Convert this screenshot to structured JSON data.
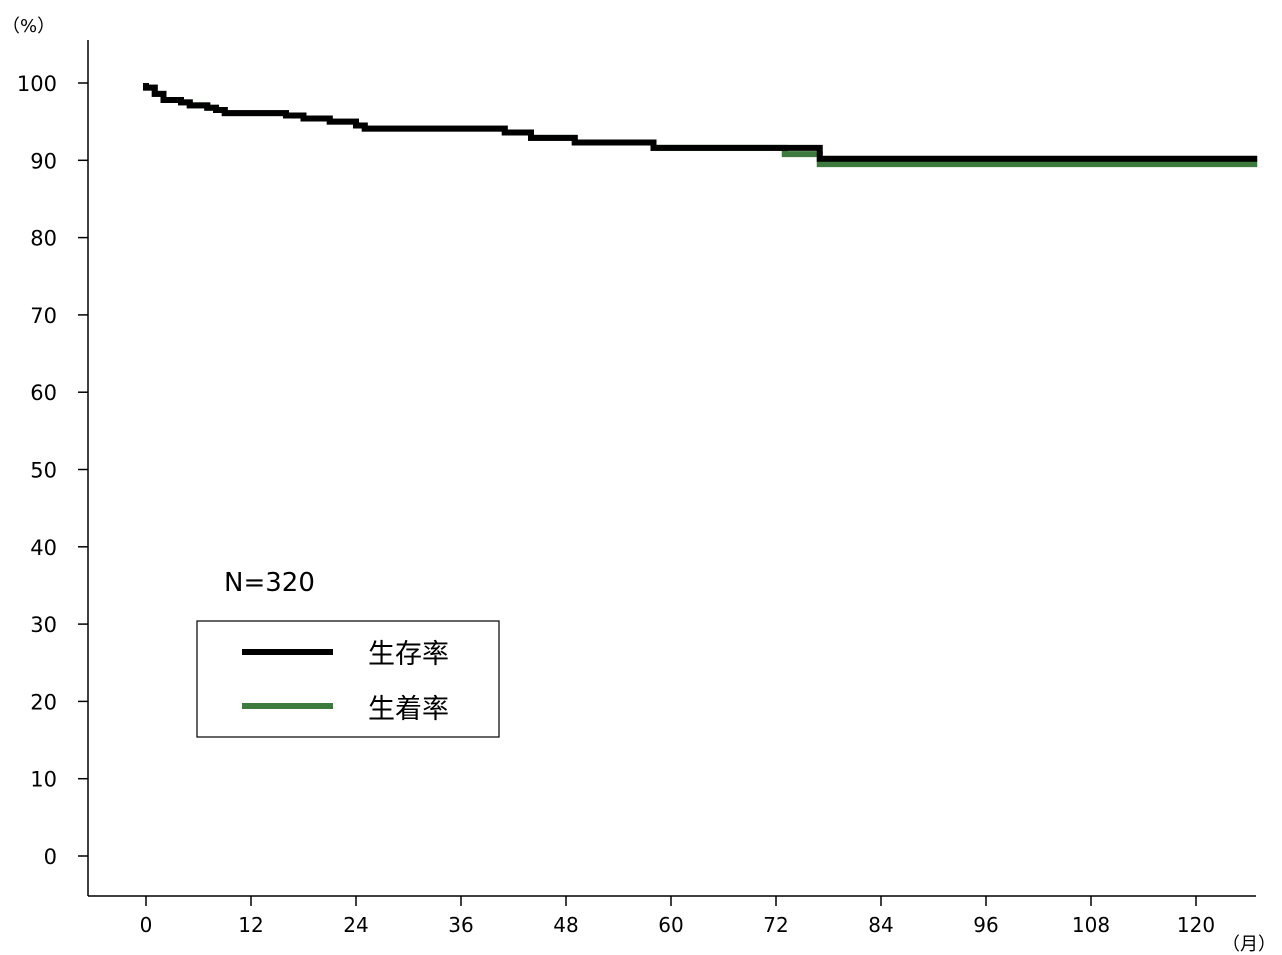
{
  "chart_data": {
    "type": "line",
    "step": true,
    "y_unit": "（%）",
    "x_unit": "（月）",
    "annotation": "N=320",
    "xlim": [
      -10,
      126
    ],
    "ylim": [
      -5,
      105
    ],
    "x_ticks": [
      "0",
      "12",
      "24",
      "36",
      "48",
      "60",
      "72",
      "84",
      "96",
      "108",
      "120"
    ],
    "y_ticks": [
      "100",
      "90",
      "80",
      "70",
      "60",
      "50",
      "40",
      "30",
      "20",
      "10",
      "0"
    ],
    "grid": false,
    "legend_position": "lower-left",
    "series": [
      {
        "name": "生存率",
        "color": "#000000",
        "points": [
          [
            0,
            100
          ],
          [
            0,
            99.4
          ],
          [
            1,
            99.4
          ],
          [
            1,
            98.6
          ],
          [
            2,
            98.6
          ],
          [
            2,
            97.8
          ],
          [
            4,
            97.8
          ],
          [
            4,
            97.5
          ],
          [
            5,
            97.5
          ],
          [
            5,
            97.1
          ],
          [
            7,
            97.1
          ],
          [
            7,
            96.8
          ],
          [
            8,
            96.8
          ],
          [
            8,
            96.5
          ],
          [
            9,
            96.5
          ],
          [
            9,
            96.1
          ],
          [
            16,
            96.1
          ],
          [
            16,
            95.8
          ],
          [
            18,
            95.8
          ],
          [
            18,
            95.4
          ],
          [
            21,
            95.4
          ],
          [
            21,
            95.0
          ],
          [
            24,
            95.0
          ],
          [
            24,
            94.5
          ],
          [
            25,
            94.5
          ],
          [
            25,
            94.1
          ],
          [
            41,
            94.1
          ],
          [
            41,
            93.6
          ],
          [
            44,
            93.6
          ],
          [
            44,
            92.9
          ],
          [
            49,
            92.9
          ],
          [
            49,
            92.3
          ],
          [
            58,
            92.3
          ],
          [
            58,
            91.6
          ],
          [
            77,
            91.6
          ],
          [
            77,
            90.2
          ],
          [
            127,
            90.2
          ]
        ]
      },
      {
        "name": "生着率",
        "color": "#3d7a3d",
        "points": [
          [
            0,
            100
          ],
          [
            0,
            99.4
          ],
          [
            1,
            99.4
          ],
          [
            1,
            98.6
          ],
          [
            2,
            98.6
          ],
          [
            2,
            97.8
          ],
          [
            4,
            97.8
          ],
          [
            4,
            97.5
          ],
          [
            5,
            97.5
          ],
          [
            5,
            97.1
          ],
          [
            7,
            97.1
          ],
          [
            7,
            96.8
          ],
          [
            8,
            96.8
          ],
          [
            8,
            96.5
          ],
          [
            9,
            96.5
          ],
          [
            9,
            96.1
          ],
          [
            16,
            96.1
          ],
          [
            16,
            95.8
          ],
          [
            18,
            95.8
          ],
          [
            18,
            95.4
          ],
          [
            21,
            95.4
          ],
          [
            21,
            95.0
          ],
          [
            24,
            95.0
          ],
          [
            24,
            94.5
          ],
          [
            25,
            94.5
          ],
          [
            25,
            94.1
          ],
          [
            41,
            94.1
          ],
          [
            41,
            93.6
          ],
          [
            44,
            93.6
          ],
          [
            44,
            92.9
          ],
          [
            49,
            92.9
          ],
          [
            49,
            92.3
          ],
          [
            58,
            92.3
          ],
          [
            58,
            91.6
          ],
          [
            73,
            91.6
          ],
          [
            73,
            90.8
          ],
          [
            77,
            90.8
          ],
          [
            77,
            89.5
          ],
          [
            127,
            89.5
          ]
        ]
      }
    ]
  }
}
